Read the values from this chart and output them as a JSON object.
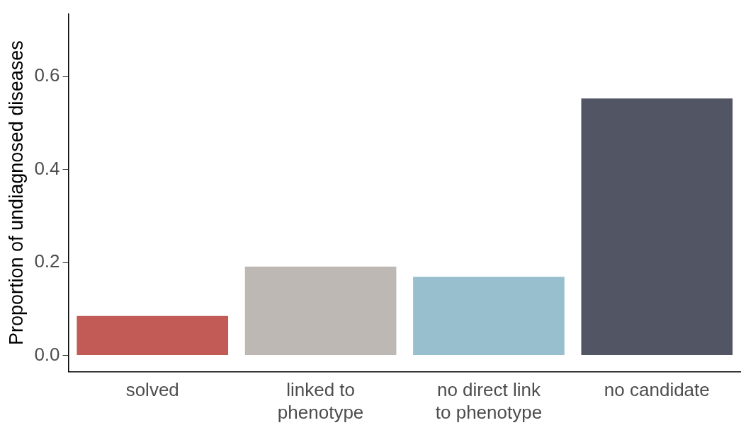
{
  "chart_data": {
    "type": "bar",
    "ylabel": "Proportion of undiagnosed diseases",
    "categories": [
      "solved",
      "linked to\nphenotype",
      "no direct link\nto phenotype",
      "no candidate"
    ],
    "values": [
      0.085,
      0.191,
      0.169,
      0.553
    ],
    "colors": [
      "#c25b56",
      "#bdb8b4",
      "#97bfcd",
      "#525564"
    ],
    "ylim": [
      -0.035,
      0.735
    ],
    "yticks": [
      {
        "value": 0,
        "label": "0.0"
      },
      {
        "value": 0.2,
        "label": "0.2"
      },
      {
        "value": 0.4,
        "label": "0.4"
      },
      {
        "value": 0.6,
        "label": "0.6"
      }
    ],
    "grid": false,
    "legend": false
  }
}
